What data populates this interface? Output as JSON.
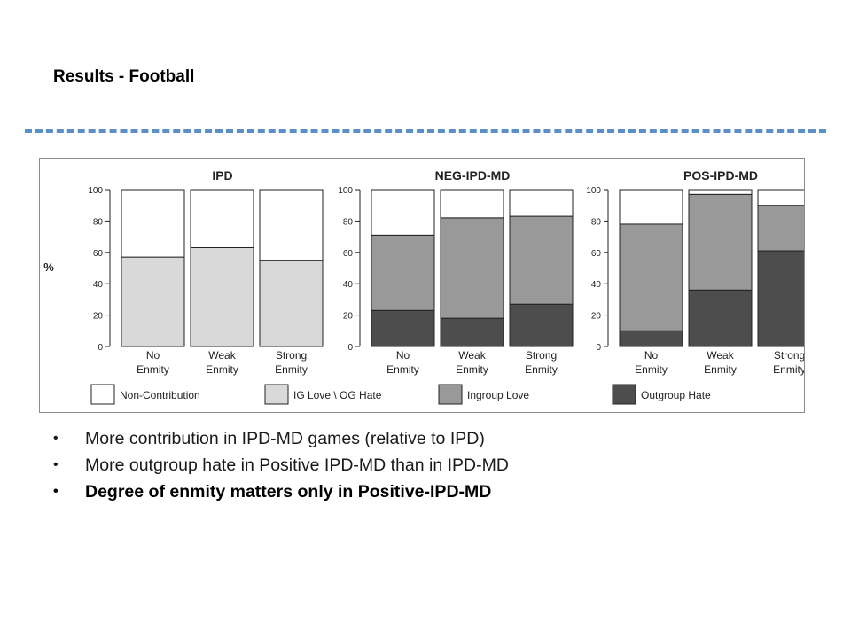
{
  "slide": {
    "title": "Results - Football"
  },
  "bullets": [
    {
      "text": "More contribution in IPD-MD games (relative to IPD)",
      "bold": false
    },
    {
      "text": "More outgroup hate in Positive IPD-MD than in IPD-MD",
      "bold": false
    },
    {
      "text": "Degree of enmity matters only in Positive-IPD-MD",
      "bold": true
    }
  ],
  "chart_data": {
    "type": "bar",
    "stacked": true,
    "ylabel": "%",
    "ylim": [
      0,
      100
    ],
    "yticks": [
      "0",
      "20",
      "40",
      "60",
      "80",
      "100"
    ],
    "categories": [
      [
        "No",
        "Enmity"
      ],
      [
        "Weak",
        "Enmity"
      ],
      [
        "Strong",
        "Enmity"
      ]
    ],
    "legend": [
      {
        "name": "Non-Contribution",
        "color": "#ffffff"
      },
      {
        "name": "IG Love \\ OG Hate",
        "color": "#d9d9d9"
      },
      {
        "name": "Ingroup Love",
        "color": "#999999"
      },
      {
        "name": "Outgroup Hate",
        "color": "#4d4d4d"
      }
    ],
    "panels": [
      {
        "title": "IPD",
        "series": [
          {
            "name": "IG Love \\ OG Hate",
            "values": [
              57,
              63,
              55
            ]
          },
          {
            "name": "Non-Contribution",
            "values": [
              43,
              37,
              45
            ]
          }
        ]
      },
      {
        "title": "NEG-IPD-MD",
        "series": [
          {
            "name": "Outgroup Hate",
            "values": [
              23,
              18,
              27
            ]
          },
          {
            "name": "Ingroup Love",
            "values": [
              48,
              64,
              56
            ]
          },
          {
            "name": "Non-Contribution",
            "values": [
              29,
              18,
              17
            ]
          }
        ]
      },
      {
        "title": "POS-IPD-MD",
        "series": [
          {
            "name": "Outgroup Hate",
            "values": [
              10,
              36,
              61
            ]
          },
          {
            "name": "Ingroup Love",
            "values": [
              68,
              61,
              29
            ]
          },
          {
            "name": "Non-Contribution",
            "values": [
              22,
              3,
              10
            ]
          }
        ]
      }
    ]
  }
}
